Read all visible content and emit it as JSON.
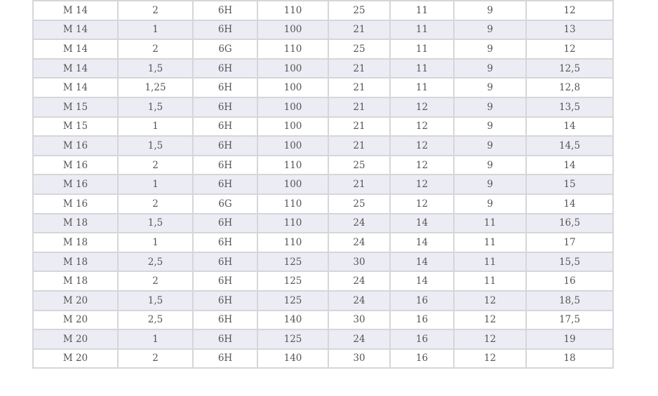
{
  "colors": {
    "row_alt": "#ececf4",
    "border": "#d6d6d9",
    "text": "#555555"
  },
  "rows": [
    [
      "M 14",
      "2",
      "6H",
      "110",
      "25",
      "11",
      "9",
      "12"
    ],
    [
      "M 14",
      "1",
      "6H",
      "100",
      "21",
      "11",
      "9",
      "13"
    ],
    [
      "M 14",
      "2",
      "6G",
      "110",
      "25",
      "11",
      "9",
      "12"
    ],
    [
      "M 14",
      "1,5",
      "6H",
      "100",
      "21",
      "11",
      "9",
      "12,5"
    ],
    [
      "M 14",
      "1,25",
      "6H",
      "100",
      "21",
      "11",
      "9",
      "12,8"
    ],
    [
      "M 15",
      "1,5",
      "6H",
      "100",
      "21",
      "12",
      "9",
      "13,5"
    ],
    [
      "M 15",
      "1",
      "6H",
      "100",
      "21",
      "12",
      "9",
      "14"
    ],
    [
      "M 16",
      "1,5",
      "6H",
      "100",
      "21",
      "12",
      "9",
      "14,5"
    ],
    [
      "M 16",
      "2",
      "6H",
      "110",
      "25",
      "12",
      "9",
      "14"
    ],
    [
      "M 16",
      "1",
      "6H",
      "100",
      "21",
      "12",
      "9",
      "15"
    ],
    [
      "M 16",
      "2",
      "6G",
      "110",
      "25",
      "12",
      "9",
      "14"
    ],
    [
      "M 18",
      "1,5",
      "6H",
      "110",
      "24",
      "14",
      "11",
      "16,5"
    ],
    [
      "M 18",
      "1",
      "6H",
      "110",
      "24",
      "14",
      "11",
      "17"
    ],
    [
      "M 18",
      "2,5",
      "6H",
      "125",
      "30",
      "14",
      "11",
      "15,5"
    ],
    [
      "M 18",
      "2",
      "6H",
      "125",
      "24",
      "14",
      "11",
      "16"
    ],
    [
      "M 20",
      "1,5",
      "6H",
      "125",
      "24",
      "16",
      "12",
      "18,5"
    ],
    [
      "M 20",
      "2,5",
      "6H",
      "140",
      "30",
      "16",
      "12",
      "17,5"
    ],
    [
      "M 20",
      "1",
      "6H",
      "125",
      "24",
      "16",
      "12",
      "19"
    ],
    [
      "M 20",
      "2",
      "6H",
      "140",
      "30",
      "16",
      "12",
      "18"
    ]
  ]
}
